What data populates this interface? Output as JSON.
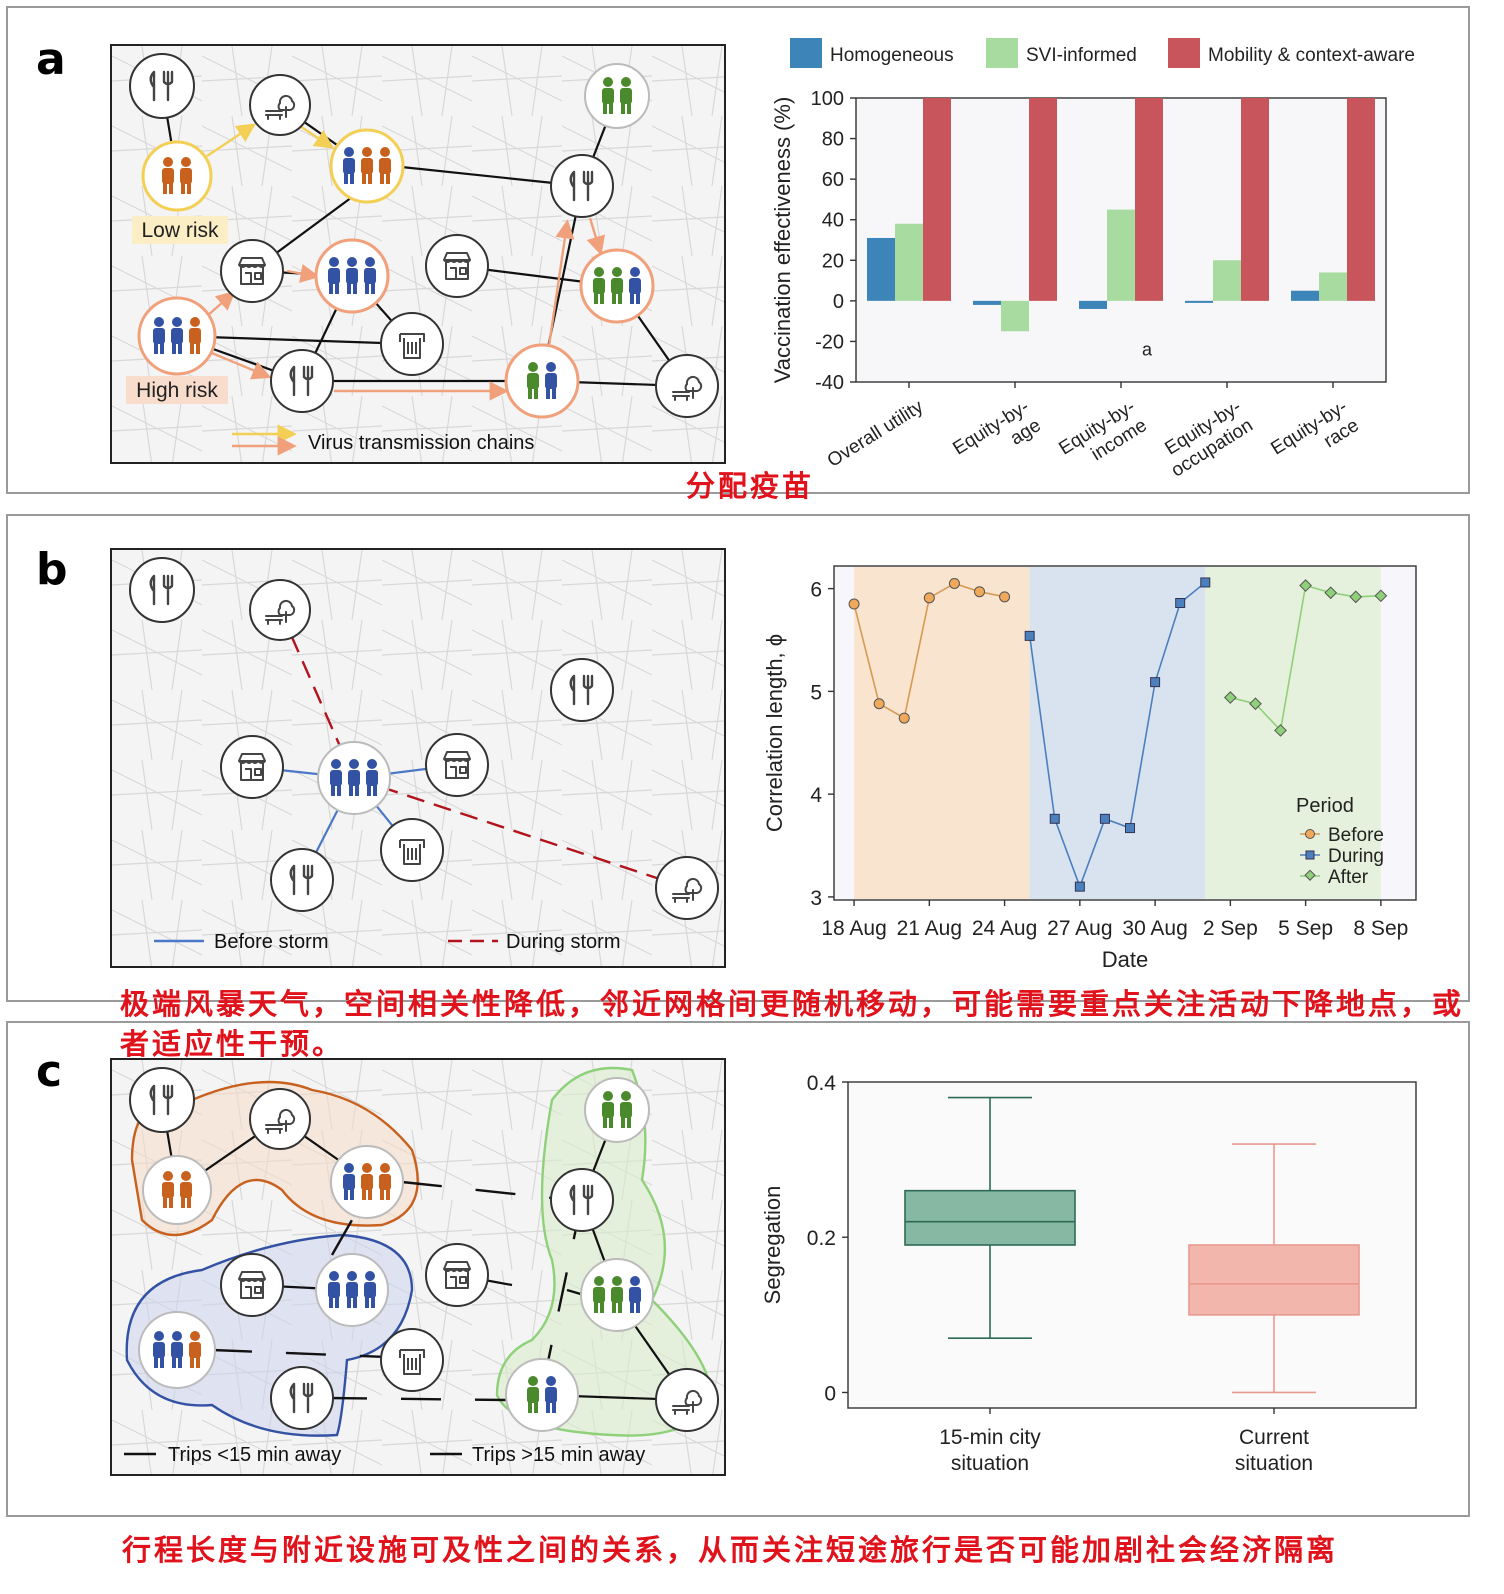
{
  "panels": {
    "a": {
      "letter": "a",
      "labels": {
        "low_risk": "Low risk",
        "high_risk": "High risk",
        "legend": "Virus transmission chains"
      },
      "annotation": "分配疫苗"
    },
    "b": {
      "letter": "b",
      "legend": {
        "before": "Before storm",
        "during": "During storm"
      },
      "annotation": "极端风暴天气，空间相关性降低，邻近网格间更随机移动，可能需要重点关注活动下降地点，或者适应性干预。"
    },
    "c": {
      "letter": "c",
      "legend": {
        "short": "Trips <15 min away",
        "long": "Trips >15 min away"
      },
      "annotation": "行程长度与附近设施可及性之间的关系，从而关注短途旅行是否可能加剧社会经济隔离"
    }
  },
  "colors": {
    "homogeneous": "#3d85b8",
    "svi": "#a8dba0",
    "mobility": "#c8555c",
    "before": "#f0a85a",
    "during": "#4c80bd",
    "after": "#8fd07a",
    "box15": "#86b8a4",
    "boxCur": "#f2b6ac",
    "orange_person": "#c8601e",
    "blue_person": "#3352a3",
    "green_person": "#4a8a2c"
  },
  "chart_data": [
    {
      "type": "bar",
      "categories": [
        "Overall utility",
        "Equity-by-\nage",
        "Equity-by-\nincome",
        "Equity-by-\noccupation",
        "Equity-by-\nrace"
      ],
      "series": [
        {
          "name": "Homogeneous",
          "values": [
            31,
            -2,
            -4,
            -1,
            5
          ]
        },
        {
          "name": "SVI-informed",
          "values": [
            38,
            -15,
            45,
            20,
            14
          ]
        },
        {
          "name": "Mobility & context-aware",
          "values": [
            100,
            100,
            100,
            100,
            100
          ]
        }
      ],
      "ylabel": "Vaccination effectiveness (%)",
      "ylim": [
        -40,
        100
      ],
      "yticks": [
        "-40",
        "-20",
        "0",
        "20",
        "40",
        "60",
        "80",
        "100"
      ],
      "annotation": "a",
      "legend": "top"
    },
    {
      "type": "line",
      "xlabel": "Date",
      "ylabel": "Correlation length, ϕ",
      "ylim": [
        3,
        6
      ],
      "yticks": [
        "3",
        "4",
        "5",
        "6"
      ],
      "xticks": [
        "18 Aug",
        "21 Aug",
        "24 Aug",
        "27 Aug",
        "30 Aug",
        "2 Sep",
        "5 Sep",
        "8 Sep"
      ],
      "legend_title": "Period",
      "legend": "bottom-right",
      "series": [
        {
          "name": "Before",
          "x": [
            "2017-08-18",
            "2017-08-19",
            "2017-08-20",
            "2017-08-21",
            "2017-08-22",
            "2017-08-23",
            "2017-08-24"
          ],
          "values": [
            5.85,
            4.88,
            4.74,
            5.91,
            6.05,
            5.97,
            5.92
          ]
        },
        {
          "name": "During",
          "x": [
            "2017-08-25",
            "2017-08-26",
            "2017-08-27",
            "2017-08-28",
            "2017-08-29",
            "2017-08-30",
            "2017-08-31",
            "2017-09-01"
          ],
          "values": [
            5.54,
            3.76,
            3.1,
            3.76,
            3.67,
            5.09,
            5.86,
            6.06
          ]
        },
        {
          "name": "After",
          "x": [
            "2017-09-02",
            "2017-09-03",
            "2017-09-04",
            "2017-09-05",
            "2017-09-06",
            "2017-09-07",
            "2017-09-08"
          ],
          "values": [
            4.94,
            4.88,
            4.62,
            6.03,
            5.96,
            5.92,
            5.93
          ]
        }
      ]
    },
    {
      "type": "box",
      "categories": [
        "15-min city\nsituation",
        "Current\nsituation"
      ],
      "boxes": [
        {
          "min": 0.07,
          "q1": 0.19,
          "median": 0.22,
          "q3": 0.26,
          "max": 0.38
        },
        {
          "min": 0.0,
          "q1": 0.1,
          "median": 0.14,
          "q3": 0.19,
          "max": 0.32
        }
      ],
      "ylabel": "Segregation",
      "ylim": [
        -0.02,
        0.4
      ],
      "yticks": [
        "0",
        "0.2",
        "0.4"
      ]
    }
  ]
}
